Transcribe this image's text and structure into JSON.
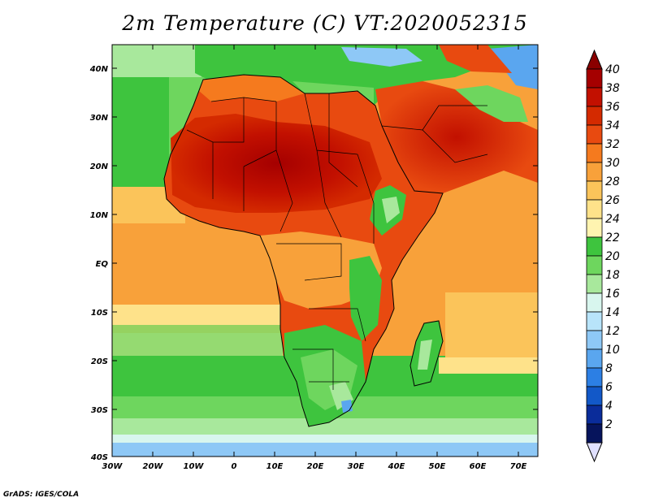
{
  "title": "2m Temperature (C) VT:2020052315",
  "footer": "GrADS: IGES/COLA",
  "map": {
    "lat_labels": [
      "40N",
      "30N",
      "20N",
      "10N",
      "EQ",
      "10S",
      "20S",
      "30S",
      "40S"
    ],
    "lon_labels": [
      "30W",
      "20W",
      "10W",
      "0",
      "10E",
      "20E",
      "30E",
      "40E",
      "50E",
      "60E",
      "70E"
    ],
    "lon_range": [
      -30,
      75
    ],
    "lat_range": [
      -40,
      45
    ]
  },
  "colorbar": {
    "labels": [
      "40",
      "38",
      "36",
      "34",
      "32",
      "30",
      "28",
      "26",
      "24",
      "22",
      "20",
      "18",
      "16",
      "14",
      "12",
      "10",
      "8",
      "6",
      "4",
      "2"
    ],
    "colors": [
      "#a50000",
      "#c21000",
      "#d42a00",
      "#e84a10",
      "#f57a1e",
      "#f8a13a",
      "#fbc45a",
      "#fee28a",
      "#fff4b0",
      "#3ec43e",
      "#6ed65e",
      "#a8e89c",
      "#d8f6ee",
      "#b8e4fa",
      "#8ec8f6",
      "#5aa6ef",
      "#2c7fe4",
      "#1258c8",
      "#0a2c9a",
      "#06145c"
    ],
    "end_colors": {
      "top": "#8a0000",
      "bottom": "#e0e0ff"
    }
  }
}
